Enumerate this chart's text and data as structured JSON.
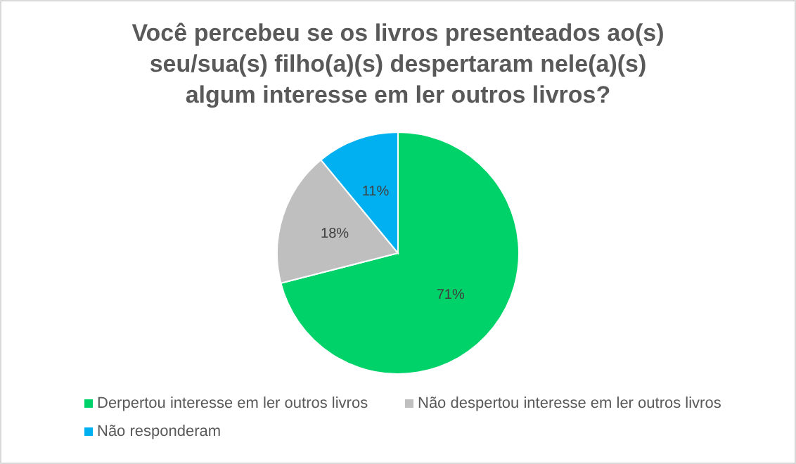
{
  "chart_data": {
    "type": "pie",
    "title": "Você percebeu se os livros presenteados ao(s) seu/sua(s) filho(a)(s) despertaram nele(a)(s) algum interesse em ler outros livros?",
    "categories": [
      "Derpertou interesse em ler outros livros",
      "Não despertou interesse em ler outros livros",
      "Não responderam"
    ],
    "values": [
      71,
      18,
      11
    ],
    "colors": [
      "#00d26a",
      "#bfbfbf",
      "#00b0f0"
    ],
    "value_labels": [
      "71%",
      "18%",
      "11%"
    ],
    "legend": "bottom"
  }
}
